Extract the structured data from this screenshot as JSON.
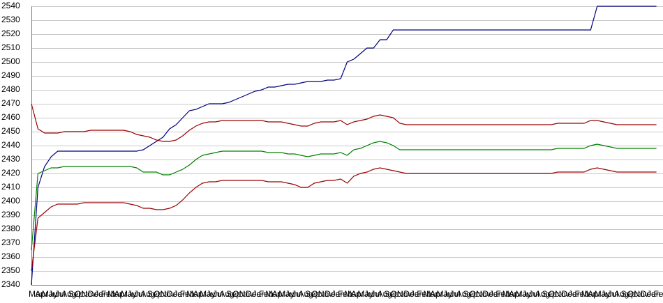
{
  "chart_data": {
    "type": "line",
    "ylim": [
      2340,
      2540
    ],
    "yticks": [
      2340,
      2350,
      2360,
      2370,
      2380,
      2390,
      2400,
      2410,
      2420,
      2430,
      2440,
      2450,
      2460,
      2470,
      2480,
      2490,
      2500,
      2510,
      2520,
      2530,
      2540
    ],
    "grid": true,
    "categories": [
      "Mar",
      "Apr",
      "May",
      "Jun",
      "Jul",
      "Aug",
      "Sep",
      "Oct",
      "Nov",
      "Dec",
      "Jan",
      "Feb",
      "Mar",
      "Apr",
      "May",
      "Jun",
      "Jul",
      "Aug",
      "Sep",
      "Oct",
      "Nov",
      "Dec",
      "Jan",
      "Feb",
      "Mar",
      "Apr",
      "May",
      "Jun",
      "Jul",
      "Aug",
      "Sep",
      "Oct",
      "Nov",
      "Dec",
      "Jan",
      "Feb",
      "Mar",
      "Apr",
      "May",
      "Jun",
      "Jul",
      "Aug",
      "Sep",
      "Oct",
      "Nov",
      "Dec",
      "Jan",
      "Feb",
      "Mar",
      "Apr",
      "May",
      "Jun",
      "Jul",
      "Aug",
      "Sep",
      "Oct",
      "Nov",
      "Dec",
      "Jan",
      "Feb",
      "Mar",
      "Apr",
      "May",
      "Jun",
      "Jul",
      "Aug",
      "Sep",
      "Oct",
      "Nov",
      "Dec",
      "Jan",
      "Feb",
      "Mar",
      "Apr",
      "May",
      "Jun",
      "Jul",
      "Aug",
      "Sep",
      "Oct",
      "Nov",
      "Dec",
      "Jan",
      "Feb",
      "Mar",
      "Apr",
      "May",
      "Jun",
      "Jul",
      "Aug",
      "Sep",
      "Oct",
      "Nov",
      "Dec",
      "Jan",
      "Feb"
    ],
    "series": [
      {
        "color": "#000080",
        "values": [
          2340,
          2410,
          2425,
          2432,
          2436,
          2436,
          2436,
          2436,
          2436,
          2436,
          2436,
          2436,
          2436,
          2436,
          2436,
          2436,
          2436,
          2437,
          2440,
          2443,
          2446,
          2452,
          2455,
          2460,
          2465,
          2466,
          2468,
          2470,
          2470,
          2470,
          2471,
          2473,
          2475,
          2477,
          2479,
          2480,
          2482,
          2482,
          2483,
          2484,
          2484,
          2485,
          2486,
          2486,
          2486,
          2487,
          2487,
          2488,
          2500,
          2502,
          2506,
          2510,
          2510,
          2516,
          2516,
          2523,
          2523,
          2523,
          2523,
          2523,
          2523,
          2523,
          2523,
          2523,
          2523,
          2523,
          2523,
          2523,
          2523,
          2523,
          2523,
          2523,
          2523,
          2523,
          2523,
          2523,
          2523,
          2523,
          2523,
          2523,
          2523,
          2523,
          2523,
          2523,
          2523,
          2523,
          2540,
          2540,
          2540,
          2540,
          2540,
          2540,
          2540,
          2540,
          2540,
          2540
        ]
      },
      {
        "color": "#008000",
        "values": [
          2365,
          2420,
          2422,
          2424,
          2424,
          2425,
          2425,
          2425,
          2425,
          2425,
          2425,
          2425,
          2425,
          2425,
          2425,
          2425,
          2424,
          2421,
          2421,
          2421,
          2419,
          2419,
          2421,
          2423,
          2426,
          2430,
          2433,
          2434,
          2435,
          2436,
          2436,
          2436,
          2436,
          2436,
          2436,
          2436,
          2435,
          2435,
          2435,
          2434,
          2434,
          2433,
          2432,
          2433,
          2434,
          2434,
          2434,
          2435,
          2433,
          2437,
          2438,
          2440,
          2442,
          2443,
          2442,
          2440,
          2437,
          2437,
          2437,
          2437,
          2437,
          2437,
          2437,
          2437,
          2437,
          2437,
          2437,
          2437,
          2437,
          2437,
          2437,
          2437,
          2437,
          2437,
          2437,
          2437,
          2437,
          2437,
          2437,
          2437,
          2438,
          2438,
          2438,
          2438,
          2438,
          2440,
          2441,
          2440,
          2439,
          2438,
          2438,
          2438,
          2438,
          2438,
          2438,
          2438
        ]
      },
      {
        "color": "#990000",
        "values": [
          2470,
          2452,
          2449,
          2449,
          2449,
          2450,
          2450,
          2450,
          2450,
          2451,
          2451,
          2451,
          2451,
          2451,
          2451,
          2450,
          2448,
          2447,
          2446,
          2444,
          2443,
          2443,
          2444,
          2447,
          2451,
          2454,
          2456,
          2457,
          2457,
          2458,
          2458,
          2458,
          2458,
          2458,
          2458,
          2458,
          2457,
          2457,
          2457,
          2456,
          2455,
          2454,
          2454,
          2456,
          2457,
          2457,
          2457,
          2458,
          2455,
          2457,
          2458,
          2459,
          2461,
          2462,
          2461,
          2460,
          2456,
          2455,
          2455,
          2455,
          2455,
          2455,
          2455,
          2455,
          2455,
          2455,
          2455,
          2455,
          2455,
          2455,
          2455,
          2455,
          2455,
          2455,
          2455,
          2455,
          2455,
          2455,
          2455,
          2455,
          2456,
          2456,
          2456,
          2456,
          2456,
          2458,
          2458,
          2457,
          2456,
          2455,
          2455,
          2455,
          2455,
          2455,
          2455,
          2455
        ]
      },
      {
        "color": "#990000",
        "values": [
          2350,
          2388,
          2392,
          2396,
          2398,
          2398,
          2398,
          2398,
          2399,
          2399,
          2399,
          2399,
          2399,
          2399,
          2399,
          2398,
          2397,
          2395,
          2395,
          2394,
          2394,
          2395,
          2397,
          2401,
          2406,
          2410,
          2413,
          2414,
          2414,
          2415,
          2415,
          2415,
          2415,
          2415,
          2415,
          2415,
          2414,
          2414,
          2414,
          2413,
          2412,
          2410,
          2410,
          2413,
          2414,
          2415,
          2415,
          2416,
          2413,
          2418,
          2420,
          2421,
          2423,
          2424,
          2423,
          2422,
          2421,
          2420,
          2420,
          2420,
          2420,
          2420,
          2420,
          2420,
          2420,
          2420,
          2420,
          2420,
          2420,
          2420,
          2420,
          2420,
          2420,
          2420,
          2420,
          2420,
          2420,
          2420,
          2420,
          2420,
          2421,
          2421,
          2421,
          2421,
          2421,
          2423,
          2424,
          2423,
          2422,
          2421,
          2421,
          2421,
          2421,
          2421,
          2421,
          2421
        ]
      }
    ]
  }
}
